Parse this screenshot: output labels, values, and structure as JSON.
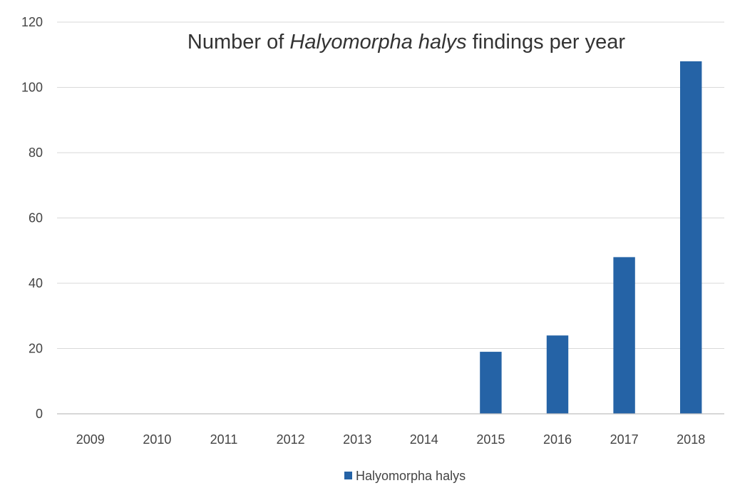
{
  "chart_data": {
    "type": "bar",
    "title": {
      "prefix": "Number of ",
      "italic": "Halyomorpha halys",
      "suffix": " findings per year"
    },
    "categories": [
      "2009",
      "2010",
      "2011",
      "2012",
      "2013",
      "2014",
      "2015",
      "2016",
      "2017",
      "2018"
    ],
    "series": [
      {
        "name": "Halyomorpha halys",
        "color": "#2563a6",
        "values": [
          0,
          0,
          0,
          0,
          0,
          0,
          19,
          24,
          48,
          108
        ]
      }
    ],
    "xlabel": "",
    "ylabel": "",
    "ylim": [
      0,
      120
    ],
    "yticks": [
      0,
      20,
      40,
      60,
      80,
      100,
      120
    ],
    "grid": true,
    "legend_position": "bottom"
  }
}
